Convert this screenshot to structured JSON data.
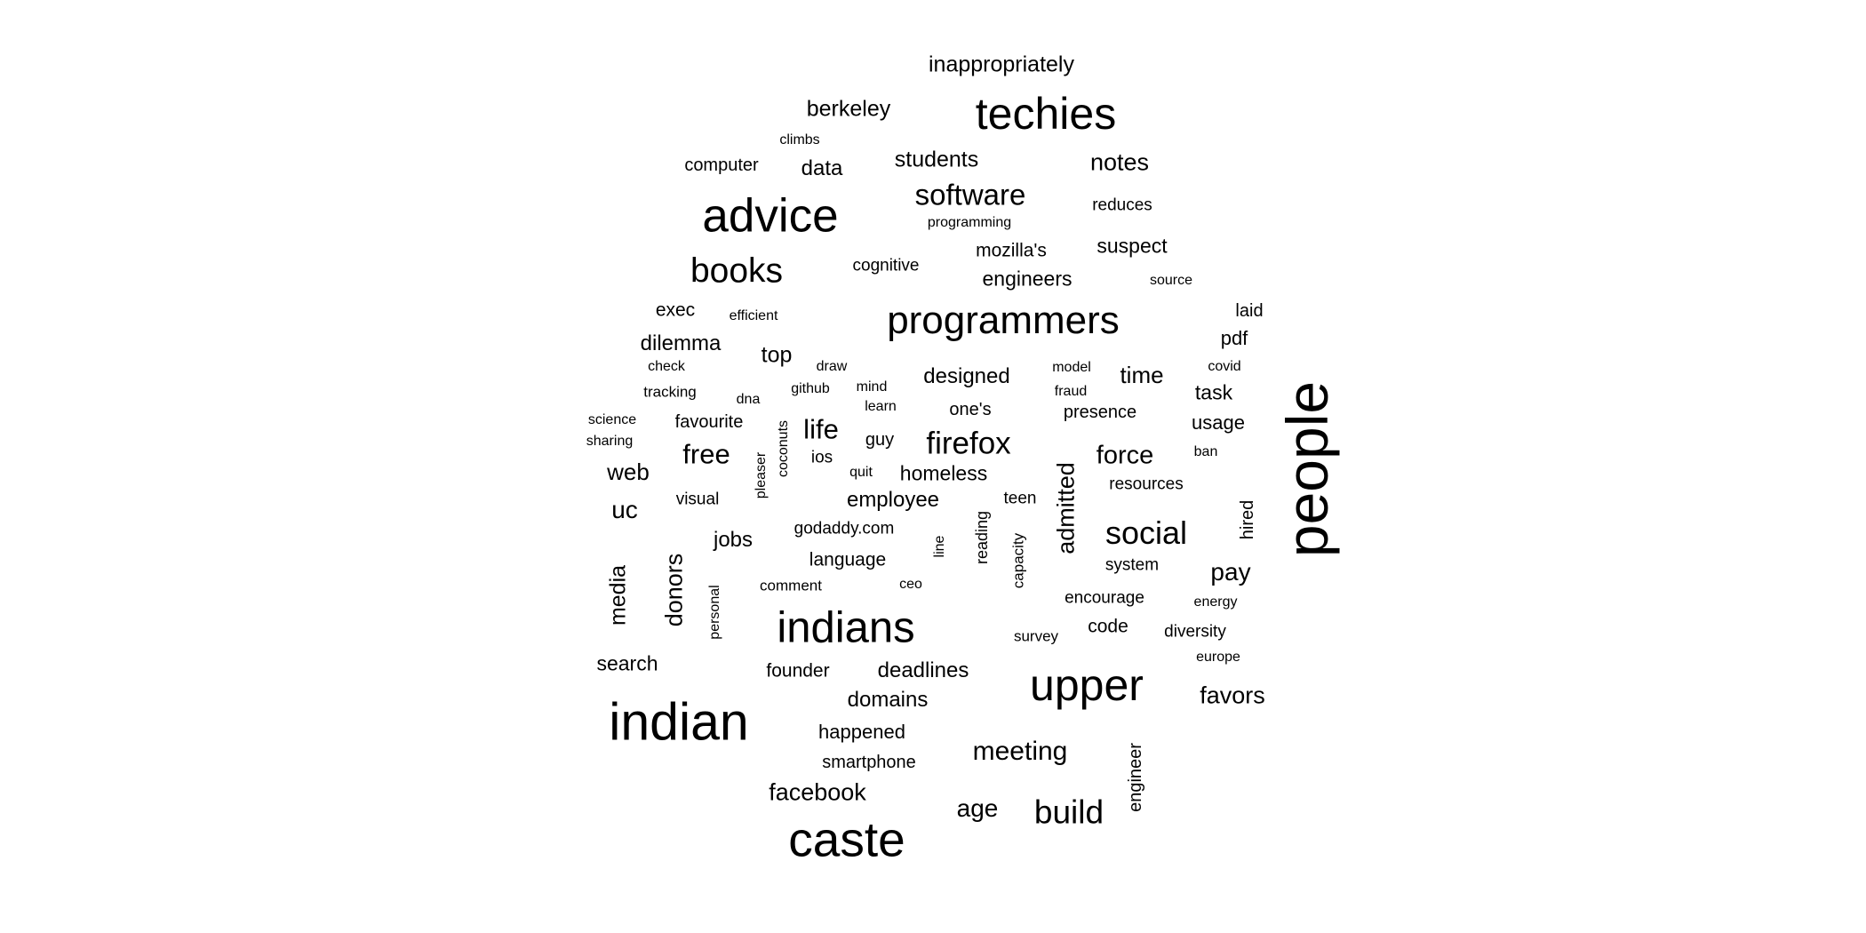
{
  "text_color": "#000000",
  "background_color": "#ffffff",
  "words": [
    {
      "text": "inappropriately",
      "weight": 0.4
    },
    {
      "text": "berkeley",
      "weight": 0.4
    },
    {
      "text": "techies",
      "weight": 0.72
    },
    {
      "text": "climbs",
      "weight": 0.26
    },
    {
      "text": "computer",
      "weight": 0.32
    },
    {
      "text": "data",
      "weight": 0.38
    },
    {
      "text": "students",
      "weight": 0.4
    },
    {
      "text": "notes",
      "weight": 0.42
    },
    {
      "text": "advice",
      "weight": 0.8
    },
    {
      "text": "software",
      "weight": 0.52
    },
    {
      "text": "reduces",
      "weight": 0.31
    },
    {
      "text": "programming",
      "weight": 0.26
    },
    {
      "text": "mozilla's",
      "weight": 0.33
    },
    {
      "text": "suspect",
      "weight": 0.36
    },
    {
      "text": "books",
      "weight": 0.6
    },
    {
      "text": "cognitive",
      "weight": 0.32
    },
    {
      "text": "engineers",
      "weight": 0.38
    },
    {
      "text": "source",
      "weight": 0.26
    },
    {
      "text": "exec",
      "weight": 0.33
    },
    {
      "text": "efficient",
      "weight": 0.26
    },
    {
      "text": "programmers",
      "weight": 0.74
    },
    {
      "text": "laid",
      "weight": 0.33
    },
    {
      "text": "pdf",
      "weight": 0.36
    },
    {
      "text": "dilemma",
      "weight": 0.4
    },
    {
      "text": "top",
      "weight": 0.42
    },
    {
      "text": "check",
      "weight": 0.26
    },
    {
      "text": "draw",
      "weight": 0.26
    },
    {
      "text": "model",
      "weight": 0.26
    },
    {
      "text": "covid",
      "weight": 0.26
    },
    {
      "text": "designed",
      "weight": 0.42
    },
    {
      "text": "time",
      "weight": 0.44
    },
    {
      "text": "tracking",
      "weight": 0.28
    },
    {
      "text": "dna",
      "weight": 0.26
    },
    {
      "text": "github",
      "weight": 0.27
    },
    {
      "text": "mind",
      "weight": 0.26
    },
    {
      "text": "fraud",
      "weight": 0.26
    },
    {
      "text": "task",
      "weight": 0.38
    },
    {
      "text": "learn",
      "weight": 0.27
    },
    {
      "text": "one's",
      "weight": 0.33
    },
    {
      "text": "presence",
      "weight": 0.34
    },
    {
      "text": "science",
      "weight": 0.26
    },
    {
      "text": "favourite",
      "weight": 0.34
    },
    {
      "text": "coconuts",
      "weight": 0.26
    },
    {
      "text": "life",
      "weight": 0.52
    },
    {
      "text": "usage",
      "weight": 0.36
    },
    {
      "text": "sharing",
      "weight": 0.26
    },
    {
      "text": "guy",
      "weight": 0.32
    },
    {
      "text": "firefox",
      "weight": 0.62
    },
    {
      "text": "people",
      "weight": 0.98
    },
    {
      "text": "free",
      "weight": 0.52
    },
    {
      "text": "ios",
      "weight": 0.32
    },
    {
      "text": "force",
      "weight": 0.48
    },
    {
      "text": "ban",
      "weight": 0.26
    },
    {
      "text": "pleaser",
      "weight": 0.26
    },
    {
      "text": "web",
      "weight": 0.44
    },
    {
      "text": "quit",
      "weight": 0.26
    },
    {
      "text": "homeless",
      "weight": 0.38
    },
    {
      "text": "admitted",
      "weight": 0.46
    },
    {
      "text": "resources",
      "weight": 0.32
    },
    {
      "text": "visual",
      "weight": 0.32
    },
    {
      "text": "employee",
      "weight": 0.4
    },
    {
      "text": "teen",
      "weight": 0.32
    },
    {
      "text": "uc",
      "weight": 0.46
    },
    {
      "text": "hired",
      "weight": 0.34
    },
    {
      "text": "reading",
      "weight": 0.3
    },
    {
      "text": "godaddy.com",
      "weight": 0.32
    },
    {
      "text": "social",
      "weight": 0.6
    },
    {
      "text": "jobs",
      "weight": 0.4
    },
    {
      "text": "line",
      "weight": 0.26
    },
    {
      "text": "capacity",
      "weight": 0.29
    },
    {
      "text": "system",
      "weight": 0.31
    },
    {
      "text": "language",
      "weight": 0.36
    },
    {
      "text": "pay",
      "weight": 0.48
    },
    {
      "text": "media",
      "weight": 0.42
    },
    {
      "text": "donors",
      "weight": 0.46
    },
    {
      "text": "comment",
      "weight": 0.28
    },
    {
      "text": "ceo",
      "weight": 0.26
    },
    {
      "text": "encourage",
      "weight": 0.32
    },
    {
      "text": "energy",
      "weight": 0.26
    },
    {
      "text": "personal",
      "weight": 0.26
    },
    {
      "text": "indians",
      "weight": 0.82
    },
    {
      "text": "code",
      "weight": 0.36
    },
    {
      "text": "diversity",
      "weight": 0.32
    },
    {
      "text": "survey",
      "weight": 0.28
    },
    {
      "text": "europe",
      "weight": 0.26
    },
    {
      "text": "search",
      "weight": 0.38
    },
    {
      "text": "founder",
      "weight": 0.36
    },
    {
      "text": "deadlines",
      "weight": 0.4
    },
    {
      "text": "upper",
      "weight": 0.8
    },
    {
      "text": "favors",
      "weight": 0.44
    },
    {
      "text": "domains",
      "weight": 0.4
    },
    {
      "text": "indian",
      "weight": 0.96
    },
    {
      "text": "happened",
      "weight": 0.38
    },
    {
      "text": "engineer",
      "weight": 0.32
    },
    {
      "text": "meeting",
      "weight": 0.5
    },
    {
      "text": "smartphone",
      "weight": 0.34
    },
    {
      "text": "facebook",
      "weight": 0.44
    },
    {
      "text": "age",
      "weight": 0.46
    },
    {
      "text": "build",
      "weight": 0.6
    },
    {
      "text": "caste",
      "weight": 0.9
    }
  ]
}
